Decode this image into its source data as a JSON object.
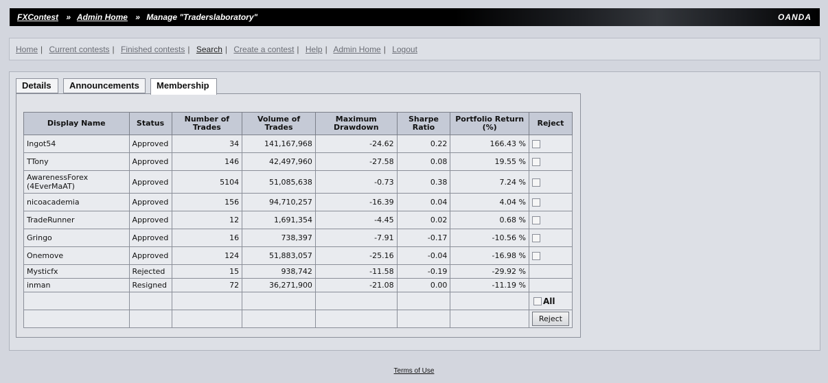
{
  "header": {
    "crumb_root": "FXContest",
    "crumb_admin": "Admin Home",
    "crumb_current": "Manage \"Traderslaboratory\"",
    "separator": "»",
    "logo": "OANDA"
  },
  "nav": {
    "items": [
      {
        "label": "Home"
      },
      {
        "label": "Current contests"
      },
      {
        "label": "Finished contests"
      },
      {
        "label": "Search"
      },
      {
        "label": "Create a contest"
      },
      {
        "label": "Help"
      },
      {
        "label": "Admin Home"
      },
      {
        "label": "Logout"
      }
    ],
    "separator": "|"
  },
  "tabs": [
    {
      "label": "Details"
    },
    {
      "label": "Announcements"
    },
    {
      "label": "Membership"
    }
  ],
  "table": {
    "headers": {
      "display_name": "Display Name",
      "status": "Status",
      "trades": "Number of Trades",
      "volume": "Volume of Trades",
      "drawdown": "Maximum Drawdown",
      "sharpe": "Sharpe Ratio",
      "return": "Portfolio Return (%)",
      "reject": "Reject"
    },
    "rows": [
      {
        "name": "Ingot54",
        "status": "Approved",
        "trades": "34",
        "volume": "141,167,968",
        "drawdown": "-24.62",
        "sharpe": "0.22",
        "return": "166.43 %"
      },
      {
        "name": "TTony",
        "status": "Approved",
        "trades": "146",
        "volume": "42,497,960",
        "drawdown": "-27.58",
        "sharpe": "0.08",
        "return": "19.55 %"
      },
      {
        "name": "AwarenessForex (4EverMaAT)",
        "status": "Approved",
        "trades": "5104",
        "volume": "51,085,638",
        "drawdown": "-0.73",
        "sharpe": "0.38",
        "return": "7.24 %"
      },
      {
        "name": "nicoacademia",
        "status": "Approved",
        "trades": "156",
        "volume": "94,710,257",
        "drawdown": "-16.39",
        "sharpe": "0.04",
        "return": "4.04 %"
      },
      {
        "name": "TradeRunner",
        "status": "Approved",
        "trades": "12",
        "volume": "1,691,354",
        "drawdown": "-4.45",
        "sharpe": "0.02",
        "return": "0.68 %"
      },
      {
        "name": "Gringo",
        "status": "Approved",
        "trades": "16",
        "volume": "738,397",
        "drawdown": "-7.91",
        "sharpe": "-0.17",
        "return": "-10.56 %"
      },
      {
        "name": "Onemove",
        "status": "Approved",
        "trades": "124",
        "volume": "51,883,057",
        "drawdown": "-25.16",
        "sharpe": "-0.04",
        "return": "-16.98 %"
      },
      {
        "name": "Mysticfx",
        "status": "Rejected",
        "trades": "15",
        "volume": "938,742",
        "drawdown": "-11.58",
        "sharpe": "-0.19",
        "return": "-29.92 %"
      },
      {
        "name": "inman",
        "status": "Resigned",
        "trades": "72",
        "volume": "36,271,900",
        "drawdown": "-21.08",
        "sharpe": "0.00",
        "return": "-11.19 %"
      }
    ],
    "all_label": "All",
    "reject_button": "Reject"
  },
  "footer": {
    "terms": "Terms of Use"
  }
}
